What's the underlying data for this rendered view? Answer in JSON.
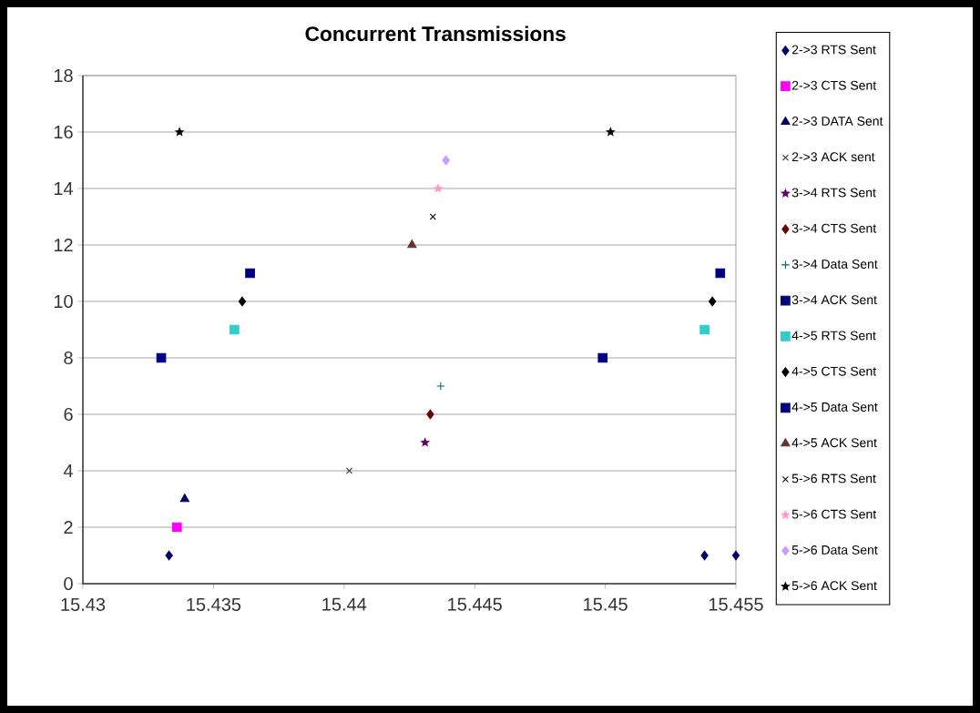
{
  "chart_data": {
    "type": "scatter",
    "title": "Concurrent Transmissions",
    "xlim": [
      15.43,
      15.455
    ],
    "xticks": [
      15.43,
      15.435,
      15.44,
      15.445,
      15.45,
      15.455
    ],
    "ylim": [
      0,
      18
    ],
    "yticks": [
      0,
      2,
      4,
      6,
      8,
      10,
      12,
      14,
      16,
      18
    ],
    "grid": "y",
    "legend": "right",
    "series": [
      {
        "name": "2->3 RTS Sent",
        "color": "#000066",
        "marker": "diamond",
        "x": [
          15.4333,
          15.4538,
          15.455
        ],
        "values": [
          1,
          1,
          1
        ]
      },
      {
        "name": "2->3 CTS Sent",
        "color": "#ff00ff",
        "marker": "square",
        "x": [
          15.4336
        ],
        "values": [
          2
        ]
      },
      {
        "name": "2->3 DATA Sent",
        "color": "#000066",
        "marker": "triangle",
        "x": [
          15.4339
        ],
        "values": [
          3
        ]
      },
      {
        "name": "2->3 ACK sent",
        "color": "#333333",
        "marker": "cross",
        "x": [
          15.4402
        ],
        "values": [
          4
        ]
      },
      {
        "name": "3->4 RTS Sent",
        "color": "#660066",
        "marker": "star",
        "x": [
          15.4431
        ],
        "values": [
          5
        ]
      },
      {
        "name": "3->4 CTS Sent",
        "color": "#660000",
        "marker": "diamond",
        "x": [
          15.4433
        ],
        "values": [
          6
        ]
      },
      {
        "name": "3->4 Data Sent",
        "color": "#006666",
        "marker": "plus",
        "x": [
          15.4437
        ],
        "values": [
          7
        ]
      },
      {
        "name": "3->4 ACK Sent",
        "color": "#000080",
        "marker": "square",
        "x": [
          15.433,
          15.4499
        ],
        "values": [
          8,
          8
        ]
      },
      {
        "name": "4->5 RTS Sent",
        "color": "#33cccc",
        "marker": "square",
        "x": [
          15.4358,
          15.4538
        ],
        "values": [
          9,
          9
        ]
      },
      {
        "name": "4->5 CTS Sent",
        "color": "#000000",
        "marker": "diamond",
        "x": [
          15.4361,
          15.4541
        ],
        "values": [
          10,
          10
        ]
      },
      {
        "name": "4->5 Data Sent",
        "color": "#000080",
        "marker": "square",
        "x": [
          15.4364,
          15.4544
        ],
        "values": [
          11,
          11
        ]
      },
      {
        "name": "4->5 ACK Sent",
        "color": "#663333",
        "marker": "triangle",
        "x": [
          15.4426
        ],
        "values": [
          12
        ]
      },
      {
        "name": "5->6 RTS Sent",
        "color": "#000000",
        "marker": "cross",
        "x": [
          15.4434
        ],
        "values": [
          13
        ]
      },
      {
        "name": "5->6 CTS Sent",
        "color": "#ff99cc",
        "marker": "star",
        "x": [
          15.4436
        ],
        "values": [
          14
        ]
      },
      {
        "name": "5->6 Data Sent",
        "color": "#cc99ff",
        "marker": "diamond",
        "x": [
          15.4439
        ],
        "values": [
          15
        ]
      },
      {
        "name": "5->6 ACK Sent",
        "color": "#000000",
        "marker": "star",
        "x": [
          15.4337,
          15.4502
        ],
        "values": [
          16,
          16
        ]
      }
    ]
  }
}
